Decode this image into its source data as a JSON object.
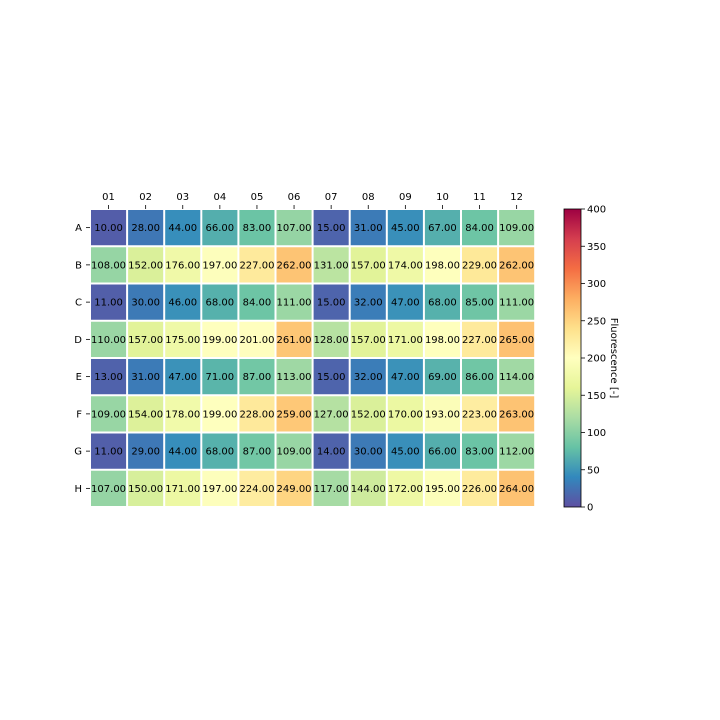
{
  "chart_data": {
    "type": "heatmap",
    "title": "",
    "x": [
      "01",
      "02",
      "03",
      "04",
      "05",
      "06",
      "07",
      "08",
      "09",
      "10",
      "11",
      "12"
    ],
    "y": [
      "A",
      "B",
      "C",
      "D",
      "E",
      "F",
      "G",
      "H"
    ],
    "values": [
      [
        10,
        28,
        44,
        66,
        83,
        107,
        15,
        31,
        45,
        67,
        84,
        109
      ],
      [
        108,
        152,
        176,
        197,
        227,
        262,
        131,
        157,
        174,
        198,
        229,
        262
      ],
      [
        11,
        30,
        46,
        68,
        84,
        111,
        15,
        32,
        47,
        68,
        85,
        111
      ],
      [
        110,
        157,
        175,
        199,
        201,
        261,
        128,
        157,
        171,
        198,
        227,
        265
      ],
      [
        13,
        31,
        47,
        71,
        87,
        113,
        15,
        32,
        47,
        69,
        86,
        114
      ],
      [
        109,
        154,
        178,
        199,
        228,
        259,
        127,
        152,
        170,
        193,
        223,
        263
      ],
      [
        11,
        29,
        44,
        68,
        87,
        109,
        14,
        30,
        45,
        66,
        83,
        112
      ],
      [
        107,
        150,
        171,
        197,
        224,
        249,
        117,
        144,
        172,
        195,
        226,
        264
      ]
    ],
    "value_format": "2 decimals",
    "x_ticks_position": "top",
    "colormap": "Spectral_r",
    "colorbar": {
      "label": "Fluorescence [-]",
      "min": 0,
      "max": 400,
      "ticks": [
        0,
        50,
        100,
        150,
        200,
        250,
        300,
        350,
        400
      ]
    }
  }
}
